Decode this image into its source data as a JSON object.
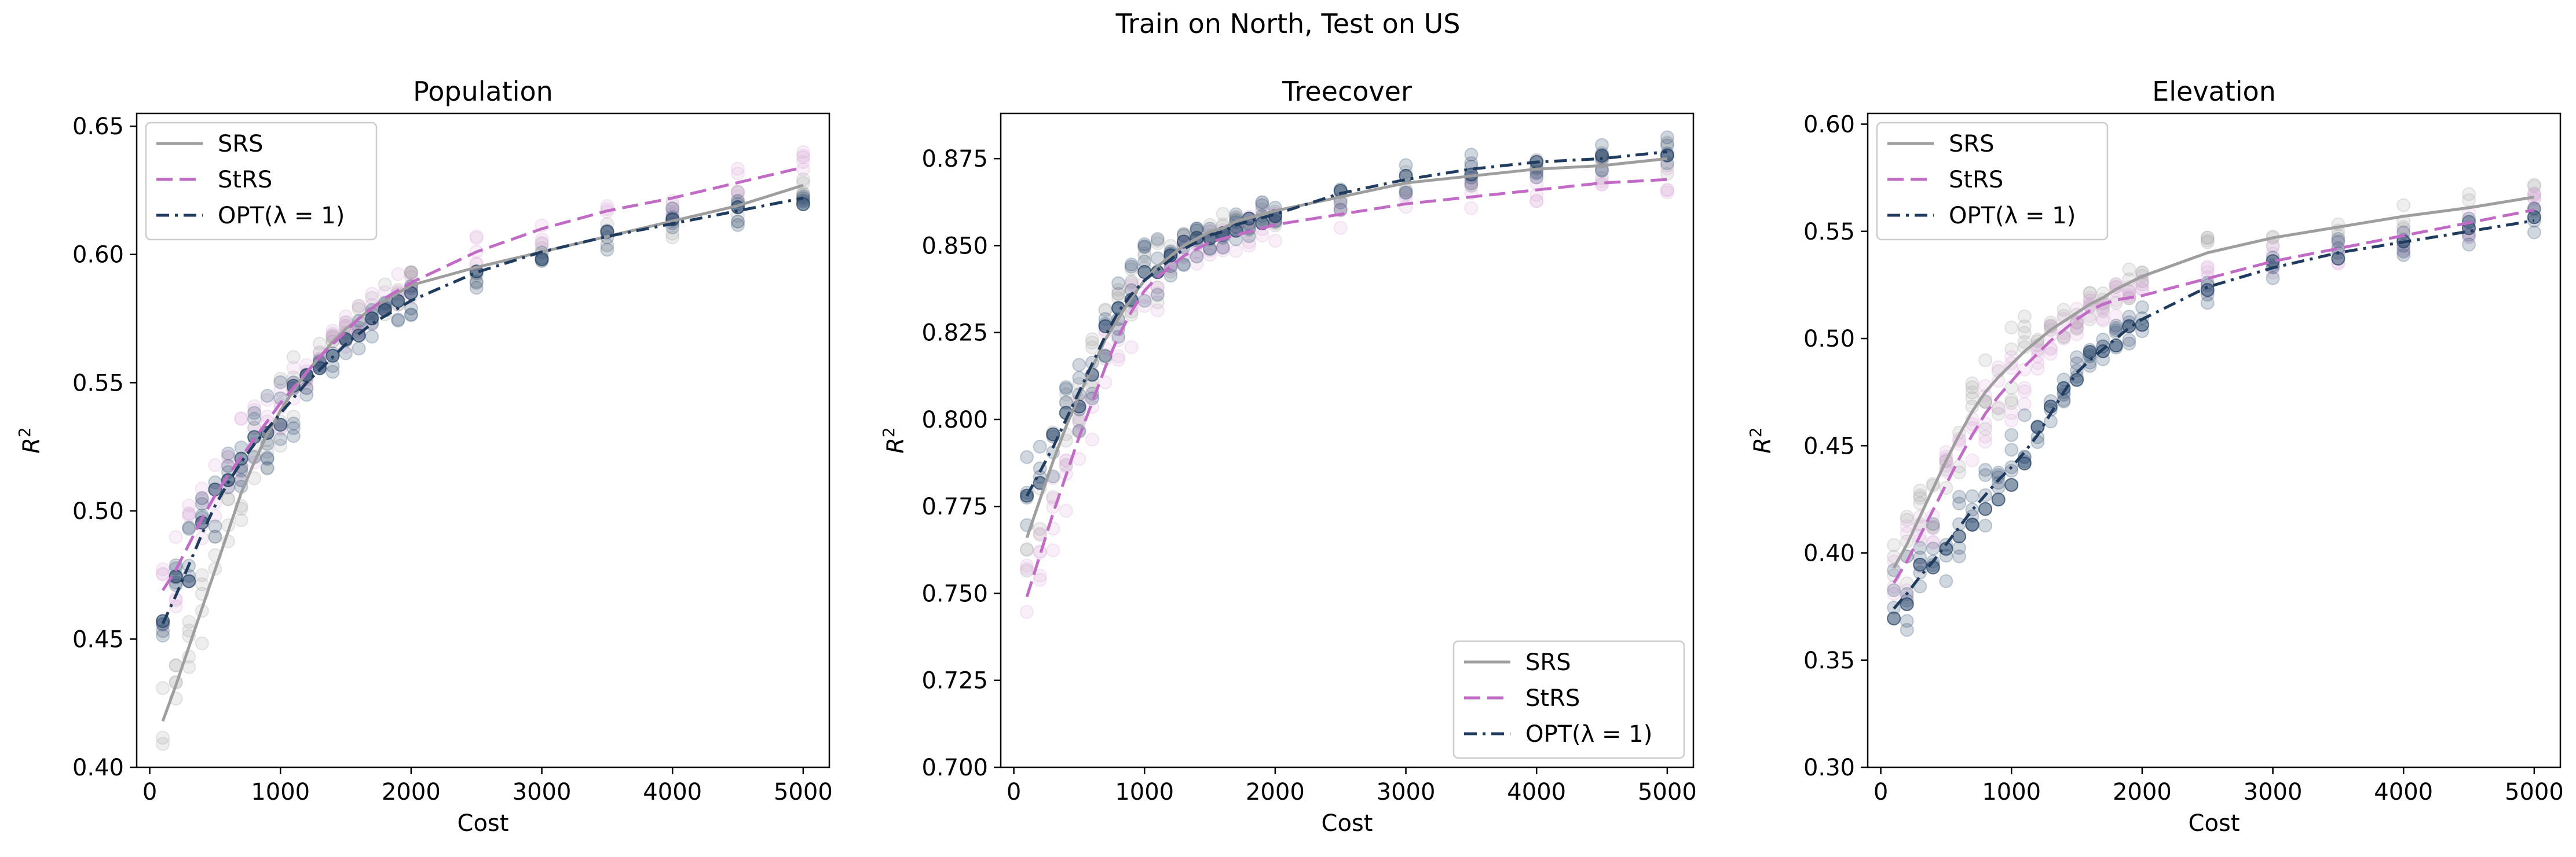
{
  "figure": {
    "suptitle": "Train on North, Test on US"
  },
  "colors": {
    "SRS": "#9e9e9e",
    "StRS": "#c26bc6",
    "OPT": "#1f3b5e",
    "StRS_dots": "#d9a6d9",
    "OPT_dots": "#2c4a6e"
  },
  "chart_data": [
    {
      "type": "line",
      "title": "Population",
      "xlabel": "Cost",
      "ylabel": "R^2",
      "xlim": [
        -100,
        5200
      ],
      "ylim": [
        0.4,
        0.655
      ],
      "xticks": [
        0,
        1000,
        2000,
        3000,
        4000,
        5000
      ],
      "yticks": [
        0.4,
        0.45,
        0.5,
        0.55,
        0.6,
        0.65
      ],
      "ytick_labels": [
        "0.40",
        "0.45",
        "0.50",
        "0.55",
        "0.60",
        "0.65"
      ],
      "legend_position": "upper-left",
      "grid": false,
      "x": [
        100,
        200,
        300,
        400,
        500,
        600,
        700,
        800,
        900,
        1000,
        1100,
        1200,
        1300,
        1400,
        1500,
        1600,
        1700,
        1800,
        1900,
        2000,
        2500,
        3000,
        3500,
        4000,
        4500,
        5000
      ],
      "series": [
        {
          "name": "SRS",
          "style": "solid",
          "color": "#9e9e9e",
          "values": [
            0.418,
            0.432,
            0.447,
            0.462,
            0.477,
            0.492,
            0.507,
            0.519,
            0.53,
            0.539,
            0.547,
            0.554,
            0.56,
            0.566,
            0.571,
            0.575,
            0.579,
            0.582,
            0.585,
            0.588,
            0.595,
            0.601,
            0.607,
            0.613,
            0.619,
            0.627
          ]
        },
        {
          "name": "StRS",
          "style": "dashed",
          "color": "#c26bc6",
          "values": [
            0.469,
            0.477,
            0.487,
            0.497,
            0.506,
            0.514,
            0.521,
            0.528,
            0.535,
            0.542,
            0.548,
            0.554,
            0.56,
            0.565,
            0.57,
            0.575,
            0.579,
            0.583,
            0.586,
            0.589,
            0.601,
            0.61,
            0.617,
            0.622,
            0.628,
            0.634
          ]
        },
        {
          "name": "OPT(λ = 1)",
          "style": "dashdot",
          "color": "#1f3b5e",
          "values": [
            0.456,
            0.467,
            0.479,
            0.491,
            0.502,
            0.511,
            0.519,
            0.526,
            0.532,
            0.538,
            0.544,
            0.55,
            0.555,
            0.56,
            0.565,
            0.569,
            0.573,
            0.576,
            0.579,
            0.582,
            0.593,
            0.601,
            0.607,
            0.612,
            0.617,
            0.622
          ]
        }
      ]
    },
    {
      "type": "line",
      "title": "Treecover",
      "xlabel": "Cost",
      "ylabel": "R^2",
      "xlim": [
        -100,
        5200
      ],
      "ylim": [
        0.7,
        0.888
      ],
      "xticks": [
        0,
        1000,
        2000,
        3000,
        4000,
        5000
      ],
      "yticks": [
        0.7,
        0.725,
        0.75,
        0.775,
        0.8,
        0.825,
        0.85,
        0.875
      ],
      "ytick_labels": [
        "0.700",
        "0.725",
        "0.750",
        "0.775",
        "0.800",
        "0.825",
        "0.850",
        "0.875"
      ],
      "legend_position": "lower-right",
      "grid": false,
      "x": [
        100,
        200,
        300,
        400,
        500,
        600,
        700,
        800,
        900,
        1000,
        1100,
        1200,
        1300,
        1400,
        1500,
        1600,
        1700,
        1800,
        1900,
        2000,
        2500,
        3000,
        3500,
        4000,
        4500,
        5000
      ],
      "series": [
        {
          "name": "SRS",
          "style": "solid",
          "color": "#9e9e9e",
          "values": [
            0.766,
            0.777,
            0.788,
            0.798,
            0.807,
            0.815,
            0.823,
            0.829,
            0.835,
            0.84,
            0.844,
            0.847,
            0.85,
            0.852,
            0.854,
            0.855,
            0.857,
            0.858,
            0.859,
            0.86,
            0.864,
            0.868,
            0.87,
            0.872,
            0.873,
            0.875
          ]
        },
        {
          "name": "StRS",
          "style": "dashed",
          "color": "#c26bc6",
          "values": [
            0.749,
            0.761,
            0.773,
            0.784,
            0.795,
            0.805,
            0.815,
            0.824,
            0.831,
            0.837,
            0.841,
            0.844,
            0.847,
            0.849,
            0.851,
            0.852,
            0.853,
            0.854,
            0.855,
            0.856,
            0.859,
            0.862,
            0.864,
            0.866,
            0.868,
            0.869
          ]
        },
        {
          "name": "OPT(λ = 1)",
          "style": "dashdot",
          "color": "#1f3b5e",
          "values": [
            0.778,
            0.785,
            0.792,
            0.8,
            0.808,
            0.816,
            0.824,
            0.831,
            0.836,
            0.84,
            0.843,
            0.846,
            0.849,
            0.851,
            0.853,
            0.854,
            0.856,
            0.857,
            0.858,
            0.859,
            0.865,
            0.869,
            0.872,
            0.874,
            0.875,
            0.877
          ]
        }
      ]
    },
    {
      "type": "line",
      "title": "Elevation",
      "xlabel": "Cost",
      "ylabel": "R^2",
      "xlim": [
        -100,
        5200
      ],
      "ylim": [
        0.3,
        0.605
      ],
      "xticks": [
        0,
        1000,
        2000,
        3000,
        4000,
        5000
      ],
      "yticks": [
        0.3,
        0.35,
        0.4,
        0.45,
        0.5,
        0.55,
        0.6
      ],
      "ytick_labels": [
        "0.30",
        "0.35",
        "0.40",
        "0.45",
        "0.50",
        "0.55",
        "0.60"
      ],
      "legend_position": "upper-left",
      "grid": false,
      "x": [
        100,
        200,
        300,
        400,
        500,
        600,
        700,
        800,
        900,
        1000,
        1100,
        1200,
        1300,
        1400,
        1500,
        1600,
        1700,
        1800,
        1900,
        2000,
        2500,
        3000,
        3500,
        4000,
        4500,
        5000
      ],
      "series": [
        {
          "name": "SRS",
          "style": "solid",
          "color": "#9e9e9e",
          "values": [
            0.393,
            0.404,
            0.417,
            0.43,
            0.443,
            0.455,
            0.466,
            0.475,
            0.482,
            0.488,
            0.494,
            0.499,
            0.504,
            0.508,
            0.512,
            0.516,
            0.519,
            0.523,
            0.526,
            0.529,
            0.54,
            0.547,
            0.552,
            0.557,
            0.561,
            0.566
          ]
        },
        {
          "name": "StRS",
          "style": "dashed",
          "color": "#c26bc6",
          "values": [
            0.386,
            0.396,
            0.408,
            0.42,
            0.432,
            0.444,
            0.455,
            0.465,
            0.473,
            0.48,
            0.487,
            0.493,
            0.499,
            0.504,
            0.509,
            0.513,
            0.516,
            0.518,
            0.519,
            0.52,
            0.528,
            0.536,
            0.542,
            0.548,
            0.554,
            0.56
          ]
        },
        {
          "name": "OPT(λ = 1)",
          "style": "dashdot",
          "color": "#1f3b5e",
          "values": [
            0.374,
            0.381,
            0.389,
            0.396,
            0.404,
            0.412,
            0.42,
            0.427,
            0.434,
            0.44,
            0.447,
            0.455,
            0.465,
            0.475,
            0.484,
            0.49,
            0.495,
            0.5,
            0.505,
            0.509,
            0.524,
            0.533,
            0.54,
            0.545,
            0.55,
            0.555
          ]
        }
      ]
    }
  ]
}
